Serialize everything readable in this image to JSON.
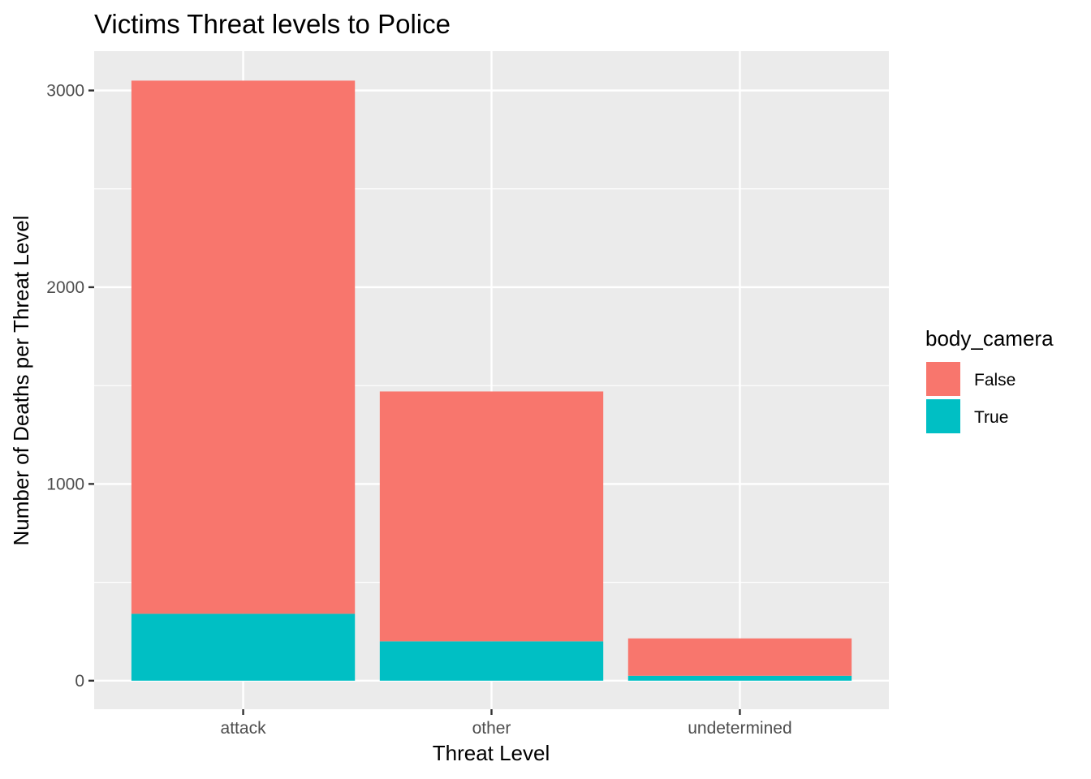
{
  "chart_data": {
    "type": "bar",
    "stacked": true,
    "title": "Victims Threat levels to Police",
    "xlabel": "Threat Level",
    "ylabel": "Number of Deaths per Threat Level",
    "categories": [
      "attack",
      "other",
      "undetermined"
    ],
    "series": [
      {
        "name": "False",
        "color": "#F8766D",
        "values": [
          2710,
          1270,
          190
        ]
      },
      {
        "name": "True",
        "color": "#00BFC4",
        "values": [
          340,
          200,
          25
        ]
      }
    ],
    "ylim": [
      -145,
      3200
    ],
    "yticks": [
      0,
      1000,
      2000,
      3000
    ],
    "ytick_labels": [
      "0",
      "1000",
      "2000",
      "3000"
    ],
    "grid": true,
    "legend": {
      "title": "body_camera",
      "position": "right"
    },
    "panel_background": "#EBEBEB",
    "grid_color": "#FFFFFF"
  }
}
